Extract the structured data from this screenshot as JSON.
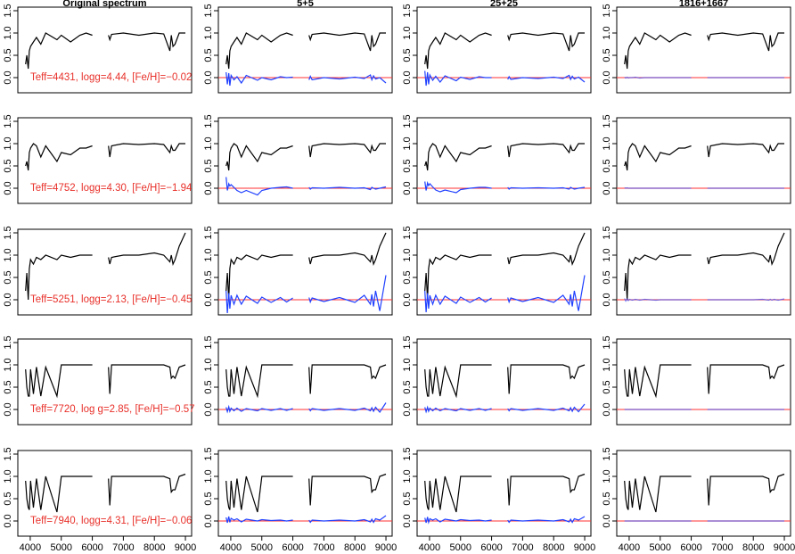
{
  "chart_data": {
    "type": "line",
    "titles": [
      "Original spectrum",
      "5+5",
      "25+25",
      "1816+1667"
    ],
    "x": [
      3850,
      3890,
      3935,
      3970,
      4010,
      4102,
      4200,
      4340,
      4500,
      4861,
      5000,
      5300,
      5600,
      5800,
      6000,
      6250,
      6520,
      6563,
      6620,
      7000,
      7500,
      8000,
      8300,
      8500,
      8545,
      8600,
      8665,
      8800,
      9000
    ],
    "xlim": [
      3600,
      9200
    ],
    "xticks": [
      4000,
      5000,
      6000,
      7000,
      8000,
      9000
    ],
    "ylim": [
      -0.34,
      1.58
    ],
    "yticks": [
      {
        "value": 0,
        "label": "0.0"
      },
      {
        "value": 0.5,
        "label": "0.5"
      },
      {
        "value": 1,
        "label": "1.0"
      },
      {
        "value": 1.5,
        "label": "1.5"
      }
    ],
    "spectrum_color": "#000000",
    "residual_color": "#2040ff",
    "zero_line_color": "#ff3030",
    "annotation_color": "#e8302a",
    "rows": [
      {
        "annotation": "Teff=4431, logg=4.44, [Fe/H]=−0.02",
        "spectrum": [
          0.3,
          0.5,
          0.2,
          0.6,
          0.7,
          0.8,
          0.9,
          0.75,
          1.0,
          0.85,
          0.95,
          0.8,
          0.95,
          1.0,
          0.95,
          null,
          0.95,
          0.85,
          0.97,
          1.0,
          0.95,
          1.0,
          0.98,
          0.6,
          0.95,
          0.7,
          0.75,
          1.0,
          1.0
        ],
        "residuals": [
          [
            0.12,
            -0.15,
            0.1,
            -0.18,
            0.05,
            -0.05,
            0.02,
            -0.12,
            0.05,
            -0.06,
            0.0,
            -0.05,
            0.02,
            0.0,
            0.01,
            null,
            -0.05,
            0.03,
            -0.05,
            0.0,
            -0.03,
            0.01,
            -0.02,
            0.06,
            -0.05,
            0.04,
            -0.03,
            0.0,
            -0.12
          ],
          [
            0.15,
            -0.18,
            0.12,
            -0.15,
            0.06,
            -0.06,
            0.03,
            -0.1,
            0.04,
            -0.07,
            0.01,
            -0.04,
            0.02,
            0.0,
            0.0,
            null,
            -0.04,
            0.02,
            -0.04,
            0.0,
            -0.02,
            0.01,
            -0.02,
            0.05,
            -0.04,
            0.03,
            -0.03,
            0.01,
            -0.1
          ],
          [
            0.01,
            -0.01,
            0.01,
            -0.01,
            0.0,
            0.0,
            0.01,
            -0.01,
            0.0,
            0.0,
            0.0,
            0.0,
            0.0,
            0.0,
            0.0,
            null,
            0.0,
            0.0,
            0.0,
            0.0,
            0.0,
            0.0,
            0.0,
            0.0,
            0.0,
            0.0,
            0.0,
            0.0,
            0.0
          ]
        ]
      },
      {
        "annotation": "Teff=4752, logg=4.30, [Fe/H]=−1.94",
        "spectrum": [
          0.5,
          0.6,
          0.4,
          0.8,
          0.9,
          1.0,
          0.95,
          0.7,
          0.95,
          0.6,
          0.8,
          0.75,
          0.9,
          0.9,
          0.95,
          null,
          0.95,
          0.7,
          0.95,
          1.0,
          0.98,
          1.0,
          0.98,
          0.8,
          0.95,
          0.85,
          0.85,
          1.0,
          1.0
        ],
        "residuals": [
          [
            0.25,
            -0.05,
            0.1,
            0.05,
            0.08,
            0.02,
            -0.05,
            -0.1,
            -0.05,
            -0.15,
            -0.05,
            0.0,
            0.02,
            0.03,
            0.0,
            null,
            0.02,
            -0.02,
            0.01,
            0.0,
            0.02,
            0.0,
            0.01,
            -0.03,
            0.02,
            0.0,
            -0.02,
            0.0,
            0.03
          ],
          [
            0.15,
            -0.05,
            0.12,
            0.06,
            0.1,
            0.03,
            -0.04,
            -0.08,
            -0.04,
            -0.1,
            -0.03,
            0.0,
            0.02,
            0.02,
            0.0,
            null,
            0.02,
            -0.02,
            0.01,
            0.0,
            0.01,
            0.0,
            0.01,
            -0.02,
            0.02,
            0.0,
            -0.02,
            0.0,
            0.02
          ],
          [
            0.01,
            0.0,
            0.01,
            0.0,
            0.0,
            0.0,
            0.0,
            0.0,
            0.0,
            0.0,
            0.0,
            0.0,
            0.0,
            0.0,
            0.0,
            null,
            0.0,
            0.0,
            0.0,
            0.0,
            0.0,
            0.0,
            0.0,
            0.0,
            0.0,
            0.0,
            0.0,
            0.0,
            0.0
          ]
        ]
      },
      {
        "annotation": "Teff=5251, logg=2.13, [Fe/H]=−0.45",
        "spectrum": [
          0.2,
          0.6,
          0.0,
          0.7,
          0.9,
          0.8,
          0.95,
          0.9,
          1.0,
          0.9,
          1.0,
          0.95,
          1.0,
          1.0,
          1.0,
          null,
          0.95,
          0.8,
          0.95,
          1.0,
          1.0,
          1.05,
          1.0,
          0.85,
          1.0,
          0.8,
          0.9,
          1.2,
          1.5
        ],
        "residuals": [
          [
            0.2,
            -0.3,
            0.15,
            -0.2,
            0.1,
            -0.1,
            0.1,
            -0.1,
            0.08,
            -0.08,
            0.06,
            -0.06,
            0.05,
            -0.05,
            0.04,
            null,
            0.05,
            -0.05,
            0.04,
            -0.04,
            0.05,
            -0.06,
            0.1,
            -0.1,
            0.12,
            -0.15,
            0.2,
            -0.25,
            0.55
          ],
          [
            0.2,
            -0.28,
            0.15,
            -0.2,
            0.1,
            -0.1,
            0.1,
            -0.1,
            0.08,
            -0.08,
            0.06,
            -0.06,
            0.05,
            -0.05,
            0.04,
            null,
            0.05,
            -0.05,
            0.04,
            -0.04,
            0.05,
            -0.06,
            0.1,
            -0.1,
            0.12,
            -0.15,
            0.2,
            -0.25,
            0.55
          ],
          [
            0.03,
            -0.03,
            0.02,
            -0.02,
            0.01,
            -0.01,
            0.01,
            -0.01,
            0.01,
            -0.01,
            0.0,
            0.0,
            0.0,
            0.0,
            0.0,
            null,
            0.0,
            0.0,
            0.0,
            0.0,
            0.0,
            0.0,
            0.01,
            -0.01,
            0.01,
            -0.01,
            0.01,
            -0.01,
            0.02
          ]
        ]
      },
      {
        "annotation": "Teff=7720, log g=2.85, [Fe/H]=−0.57",
        "spectrum": [
          0.9,
          0.5,
          0.3,
          0.3,
          0.9,
          0.35,
          0.95,
          0.3,
          0.95,
          0.3,
          1.0,
          1.0,
          1.0,
          1.0,
          1.0,
          null,
          0.95,
          0.35,
          1.0,
          1.0,
          1.0,
          1.0,
          1.0,
          0.95,
          0.7,
          0.75,
          0.7,
          0.95,
          1.0
        ],
        "residuals": [
          [
            0.05,
            -0.05,
            0.06,
            -0.04,
            0.03,
            -0.03,
            0.03,
            -0.04,
            0.02,
            -0.03,
            0.02,
            -0.02,
            0.02,
            -0.02,
            0.02,
            null,
            0.02,
            -0.03,
            0.02,
            -0.02,
            0.02,
            -0.02,
            0.03,
            -0.03,
            0.04,
            -0.04,
            0.05,
            -0.06,
            0.15
          ],
          [
            0.05,
            -0.05,
            0.05,
            -0.04,
            0.03,
            -0.03,
            0.03,
            -0.03,
            0.02,
            -0.03,
            0.02,
            -0.02,
            0.02,
            -0.02,
            0.02,
            null,
            0.02,
            -0.03,
            0.02,
            -0.02,
            0.02,
            -0.02,
            0.03,
            -0.03,
            0.04,
            -0.04,
            0.05,
            -0.05,
            0.12
          ],
          [
            0.0,
            0.0,
            0.0,
            0.0,
            0.0,
            0.0,
            0.0,
            0.0,
            0.0,
            0.0,
            0.0,
            0.0,
            0.0,
            0.0,
            0.0,
            null,
            0.0,
            0.0,
            0.0,
            0.0,
            0.0,
            0.0,
            0.0,
            0.0,
            0.0,
            0.0,
            0.0,
            0.0,
            0.0
          ]
        ]
      },
      {
        "annotation": "Teff=7940, logg=4.31, [Fe/H]=−0.06",
        "spectrum": [
          0.9,
          0.5,
          0.3,
          0.25,
          0.9,
          0.3,
          0.95,
          0.25,
          1.0,
          0.2,
          1.0,
          1.0,
          1.0,
          1.0,
          1.0,
          null,
          0.95,
          0.35,
          1.0,
          1.0,
          1.0,
          1.0,
          1.0,
          0.95,
          0.65,
          0.7,
          0.7,
          1.0,
          1.05
        ],
        "residuals": [
          [
            0.08,
            -0.04,
            0.1,
            -0.03,
            0.06,
            0.02,
            0.05,
            -0.02,
            0.04,
            0.0,
            0.03,
            0.01,
            0.02,
            0.0,
            0.02,
            null,
            0.02,
            -0.03,
            0.02,
            0.0,
            0.02,
            0.0,
            0.03,
            -0.02,
            0.04,
            -0.03,
            0.05,
            0.02,
            0.12
          ],
          [
            0.07,
            -0.04,
            0.09,
            -0.03,
            0.05,
            0.02,
            0.05,
            -0.02,
            0.04,
            0.0,
            0.03,
            0.01,
            0.02,
            0.0,
            0.02,
            null,
            0.02,
            -0.03,
            0.02,
            0.0,
            0.02,
            0.0,
            0.03,
            -0.02,
            0.04,
            -0.03,
            0.05,
            0.02,
            0.1
          ],
          [
            0.0,
            0.0,
            0.0,
            0.0,
            0.0,
            0.0,
            0.0,
            0.0,
            0.0,
            0.0,
            0.0,
            0.0,
            0.0,
            0.0,
            0.0,
            null,
            0.0,
            0.0,
            0.0,
            0.0,
            0.0,
            0.0,
            0.0,
            0.0,
            0.0,
            0.0,
            0.0,
            0.0,
            0.0
          ]
        ]
      }
    ]
  }
}
